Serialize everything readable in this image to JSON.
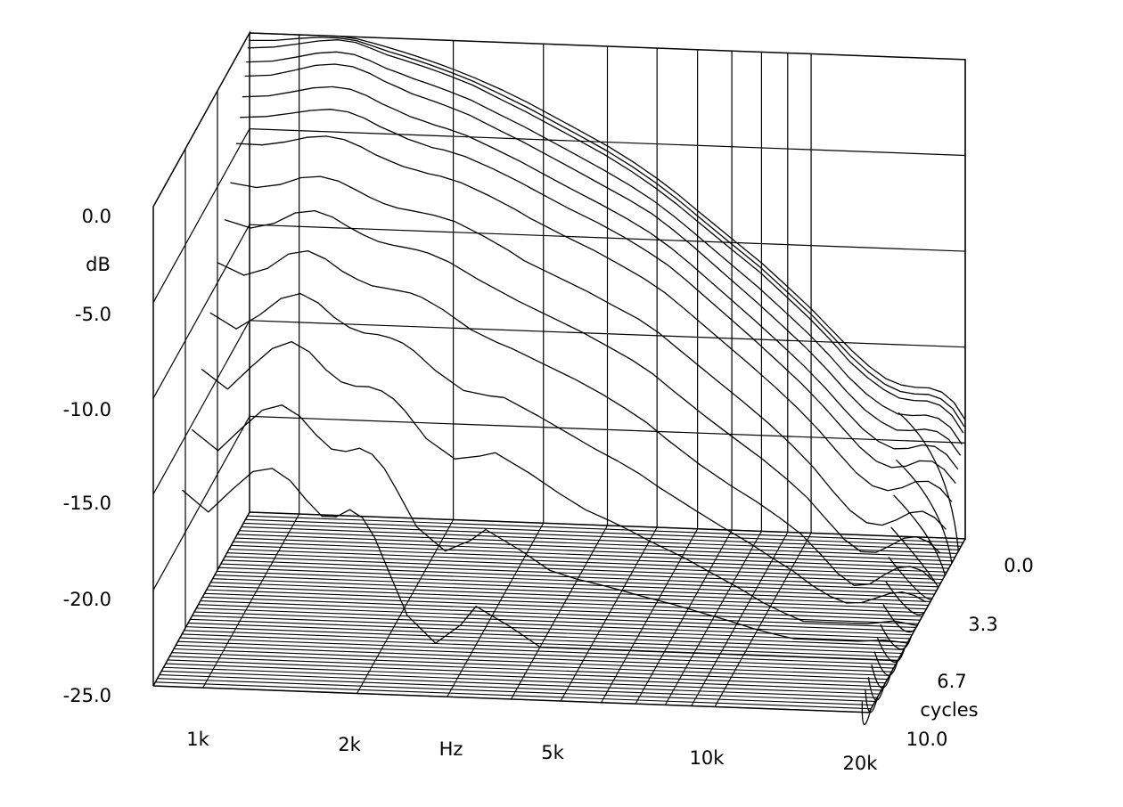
{
  "chart_data": {
    "type": "waterfall",
    "ylabel": "dB",
    "xlabel": "Hz",
    "zlabel": "cycles",
    "y_ticks": [
      "0.0",
      "-5.0",
      "-10.0",
      "-15.0",
      "-20.0",
      "-25.0"
    ],
    "x_ticks": [
      "1k",
      "2k",
      "5k",
      "10k",
      "20k"
    ],
    "z_ticks": [
      "0.0",
      "3.3",
      "6.7",
      "10.0"
    ],
    "ylim": [
      -25,
      0
    ],
    "zlim": [
      0,
      10
    ],
    "x_scale": "log",
    "xlim_hz": [
      800,
      20000
    ],
    "slice_count": 48,
    "x_hz": [
      800,
      900,
      1000,
      1100,
      1200,
      1300,
      1400,
      1500,
      1600,
      1700,
      1800,
      1900,
      2000,
      2200,
      2500,
      2800,
      3000,
      3500,
      4000,
      4500,
      5000,
      5500,
      6000,
      7000,
      8000,
      9000,
      10000,
      11000,
      12000,
      13000,
      14000,
      15000,
      16000,
      17000,
      18000,
      19000,
      20000
    ],
    "series": [
      {
        "cycles": 0.0,
        "values": [
          0.0,
          0.0,
          0.1,
          0.1,
          0.0,
          -0.1,
          -0.3,
          -0.5,
          -0.7,
          -0.9,
          -1.1,
          -1.3,
          -1.5,
          -1.9,
          -2.5,
          -3.1,
          -3.5,
          -4.4,
          -5.2,
          -6.0,
          -6.8,
          -7.6,
          -8.4,
          -9.8,
          -11.0,
          -12.2,
          -13.3,
          -14.4,
          -15.4,
          -16.2,
          -16.8,
          -17.1,
          -17.2,
          -17.2,
          -17.4,
          -17.9,
          -18.8
        ]
      },
      {
        "cycles": 0.2,
        "values": [
          -0.6,
          -0.5,
          -0.3,
          -0.1,
          0.0,
          -0.1,
          -0.4,
          -0.7,
          -0.9,
          -1.1,
          -1.3,
          -1.5,
          -1.7,
          -2.1,
          -2.8,
          -3.4,
          -3.8,
          -4.7,
          -5.5,
          -6.3,
          -7.1,
          -7.9,
          -8.7,
          -10.1,
          -11.3,
          -12.5,
          -13.6,
          -14.7,
          -15.8,
          -16.6,
          -17.2,
          -17.6,
          -17.7,
          -17.7,
          -17.9,
          -18.4,
          -19.3
        ]
      },
      {
        "cycles": 0.5,
        "values": [
          -1.8,
          -1.7,
          -1.4,
          -1.1,
          -1.0,
          -1.1,
          -1.4,
          -1.8,
          -2.1,
          -2.4,
          -2.6,
          -2.8,
          -3.0,
          -3.4,
          -4.1,
          -4.7,
          -5.1,
          -6.0,
          -6.8,
          -7.5,
          -8.2,
          -9.0,
          -9.8,
          -11.3,
          -12.6,
          -13.8,
          -14.9,
          -16.0,
          -17.1,
          -18.0,
          -18.6,
          -19.0,
          -19.0,
          -18.9,
          -19.0,
          -19.4,
          -20.2
        ]
      },
      {
        "cycles": 1.0,
        "values": [
          -3.5,
          -3.4,
          -3.2,
          -3.0,
          -2.9,
          -3.0,
          -3.3,
          -3.7,
          -4.0,
          -4.3,
          -4.5,
          -4.7,
          -4.8,
          -5.1,
          -5.7,
          -6.3,
          -6.7,
          -7.6,
          -8.3,
          -9.0,
          -9.7,
          -10.4,
          -11.2,
          -12.7,
          -14.0,
          -15.2,
          -16.3,
          -17.4,
          -18.5,
          -19.5,
          -20.2,
          -20.5,
          -20.4,
          -20.1,
          -20.1,
          -20.5,
          -21.2
        ]
      },
      {
        "cycles": 2.0,
        "values": [
          -6.0,
          -6.2,
          -6.0,
          -5.6,
          -5.5,
          -5.7,
          -6.1,
          -6.5,
          -6.8,
          -7.0,
          -7.1,
          -7.2,
          -7.3,
          -7.6,
          -8.3,
          -9.0,
          -9.5,
          -10.3,
          -11.0,
          -11.7,
          -12.3,
          -13.0,
          -13.8,
          -15.2,
          -16.4,
          -17.5,
          -18.6,
          -19.7,
          -20.9,
          -21.9,
          -22.5,
          -22.6,
          -22.3,
          -21.9,
          -21.8,
          -22.1,
          -22.7
        ]
      },
      {
        "cycles": 3.3,
        "values": [
          -9.0,
          -9.6,
          -9.2,
          -8.4,
          -8.2,
          -8.6,
          -9.2,
          -9.6,
          -9.9,
          -10.0,
          -10.1,
          -10.2,
          -10.4,
          -11.0,
          -12.0,
          -12.6,
          -12.9,
          -13.7,
          -14.4,
          -15.1,
          -15.8,
          -16.5,
          -17.3,
          -18.6,
          -19.6,
          -20.4,
          -21.2,
          -22.0,
          -23.0,
          -24.0,
          -24.6,
          -24.5,
          -24.0,
          -23.6,
          -23.5,
          -23.7,
          -24.2
        ]
      },
      {
        "cycles": 5.0,
        "values": [
          -13.0,
          -14.0,
          -12.8,
          -11.8,
          -11.4,
          -11.9,
          -12.8,
          -13.4,
          -13.6,
          -13.6,
          -13.8,
          -14.2,
          -14.8,
          -16.2,
          -17.2,
          -17.0,
          -16.8,
          -17.8,
          -18.8,
          -19.6,
          -20.1,
          -20.6,
          -21.1,
          -21.9,
          -22.7,
          -23.4,
          -24.1,
          -24.6,
          -25.0,
          -25.0,
          -25.0,
          -25.0,
          -25.0,
          -24.9,
          -24.8,
          -24.9,
          -25.0
        ]
      },
      {
        "cycles": 7.0,
        "values": [
          -17.5,
          -18.6,
          -17.4,
          -16.4,
          -16.2,
          -16.8,
          -17.8,
          -18.6,
          -18.6,
          -18.2,
          -18.6,
          -19.6,
          -21.0,
          -23.6,
          -25.0,
          -24.0,
          -23.0,
          -24.0,
          -25.0,
          -25.0,
          -25.0,
          -25.0,
          -25.0,
          -25.0,
          -25.0,
          -25.0,
          -25.0,
          -25.0,
          -25.0,
          -25.0,
          -25.0,
          -25.0,
          -25.0,
          -25.0,
          -25.0,
          -25.0,
          -25.0
        ]
      }
    ]
  }
}
